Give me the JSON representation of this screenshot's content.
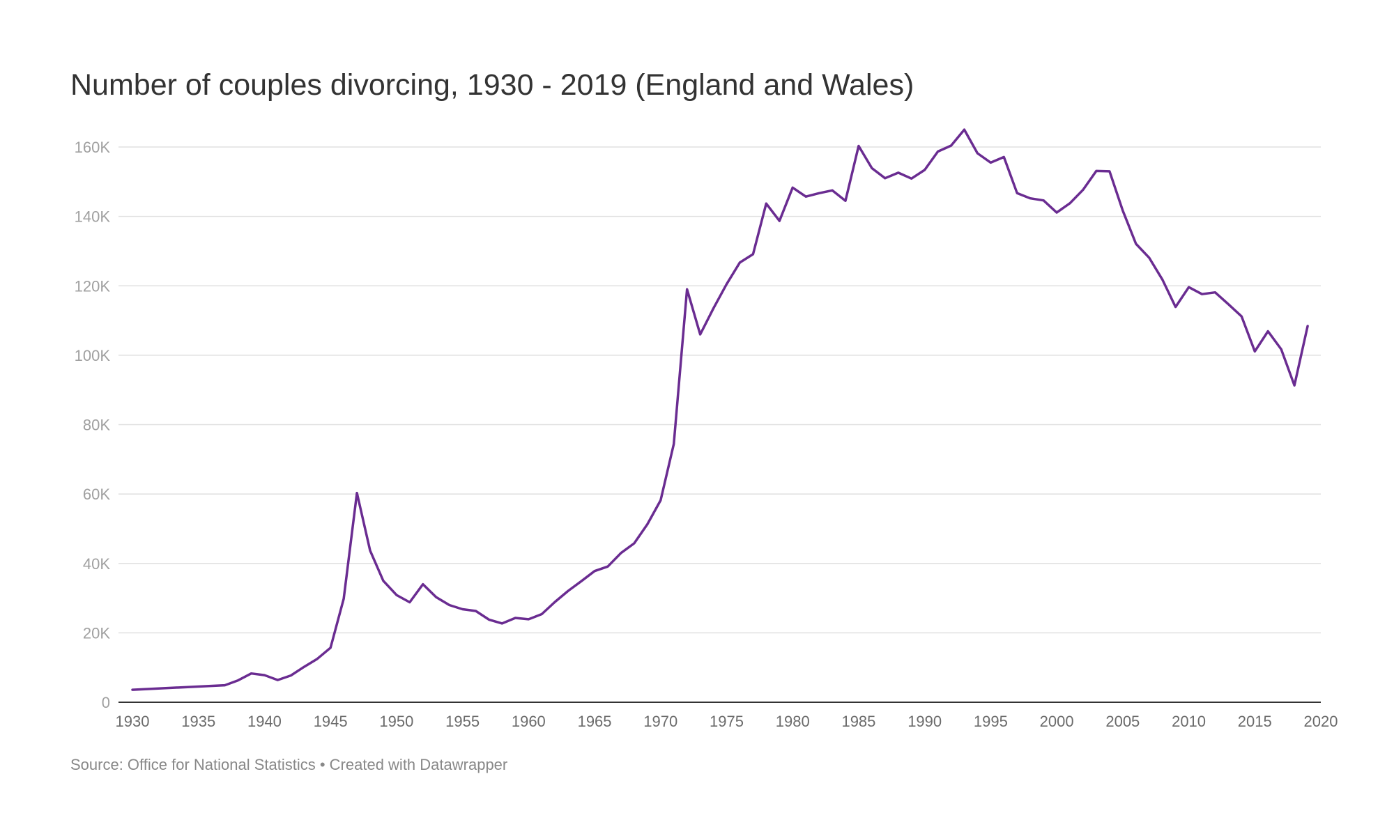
{
  "chart_data": {
    "type": "line",
    "title": "Number of couples divorcing, 1930 - 2019 (England and Wales)",
    "xlabel": "",
    "ylabel": "",
    "xlim": [
      1930,
      2020
    ],
    "ylim": [
      0,
      160000
    ],
    "grid": "horizontal",
    "legend": "none",
    "line_color": "#6a2c91",
    "x_ticks": [
      "1930",
      "1935",
      "1940",
      "1945",
      "1950",
      "1955",
      "1960",
      "1965",
      "1970",
      "1975",
      "1980",
      "1985",
      "1990",
      "1995",
      "2000",
      "2005",
      "2010",
      "2015",
      "2020"
    ],
    "y_ticks": [
      "0",
      "20K",
      "40K",
      "60K",
      "80K",
      "100K",
      "120K",
      "140K",
      "160K"
    ],
    "series": [
      {
        "x": [
          1930,
          1937,
          1938,
          1939,
          1940,
          1941,
          1942,
          1943,
          1944,
          1945,
          1946,
          1947,
          1948,
          1949,
          1950,
          1951,
          1952,
          1953,
          1954,
          1955,
          1956,
          1957,
          1958,
          1959,
          1960,
          1961,
          1962,
          1963,
          1964,
          1965,
          1966,
          1967,
          1968,
          1969,
          1970,
          1971,
          1972,
          1973,
          1974,
          1975,
          1976,
          1977,
          1978,
          1979,
          1980,
          1981,
          1982,
          1983,
          1984,
          1985,
          1986,
          1987,
          1988,
          1989,
          1990,
          1991,
          1992,
          1993,
          1994,
          1995,
          1996,
          1997,
          1998,
          1999,
          2000,
          2001,
          2002,
          2003,
          2004,
          2005,
          2006,
          2007,
          2008,
          2009,
          2010,
          2011,
          2012,
          2013,
          2014,
          2015,
          2016,
          2017,
          2018,
          2019
        ],
        "values": [
          3600,
          4900,
          6300,
          8300,
          7800,
          6400,
          7700,
          10200,
          12500,
          15700,
          29800,
          60300,
          43700,
          35000,
          30900,
          28800,
          34000,
          30300,
          28000,
          26800,
          26300,
          23800,
          22700,
          24300,
          23900,
          25400,
          28900,
          32100,
          34900,
          37800,
          39100,
          43000,
          45800,
          51300,
          58200,
          74400,
          119000,
          106000,
          113500,
          120500,
          126700,
          129100,
          143700,
          138700,
          148300,
          145700,
          146700,
          147500,
          144500,
          160300,
          153900,
          151000,
          152600,
          150900,
          153400,
          158700,
          160400,
          165000,
          158200,
          155500,
          157100,
          146700,
          145200,
          144600,
          141100,
          143800,
          147700,
          153100,
          153000,
          141700,
          132100,
          128100,
          121800,
          113900,
          119600,
          117600,
          118100,
          114700,
          111200,
          101100,
          106900,
          101700,
          91300,
          108400
        ]
      }
    ],
    "source_note": "Source: Office for National Statistics • Created with Datawrapper"
  }
}
